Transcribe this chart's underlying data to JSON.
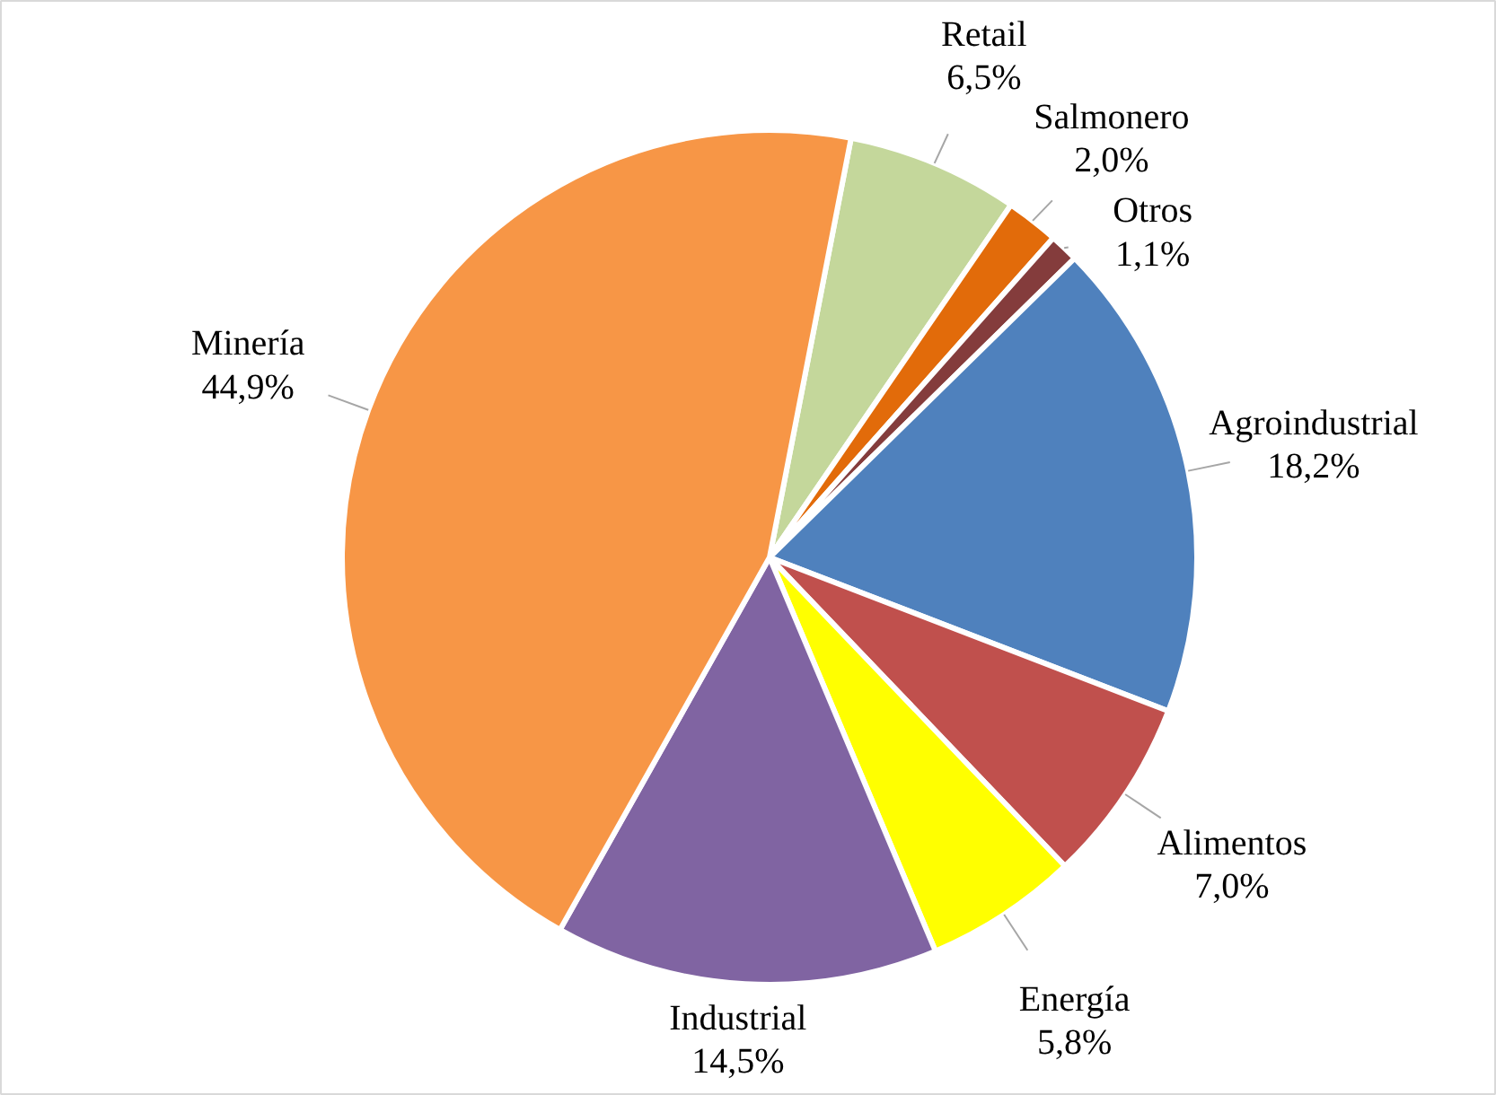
{
  "chart_data": {
    "type": "pie",
    "categories": [
      "Retail",
      "Salmonero",
      "Otros",
      "Agroindustrial",
      "Alimentos",
      "Energía",
      "Industrial",
      "Minería"
    ],
    "values": [
      6.5,
      2.0,
      1.1,
      18.2,
      7.0,
      5.8,
      14.5,
      44.9
    ],
    "colors": [
      "#c4d79b",
      "#e26b0a",
      "#843c3c",
      "#4f81bd",
      "#c0504d",
      "#ffff00",
      "#8064a2",
      "#f79646"
    ],
    "value_labels": [
      "6,5%",
      "2,0%",
      "1,1%",
      "18,2%",
      "7,0%",
      "5,8%",
      "14,5%",
      "44,9%"
    ]
  }
}
